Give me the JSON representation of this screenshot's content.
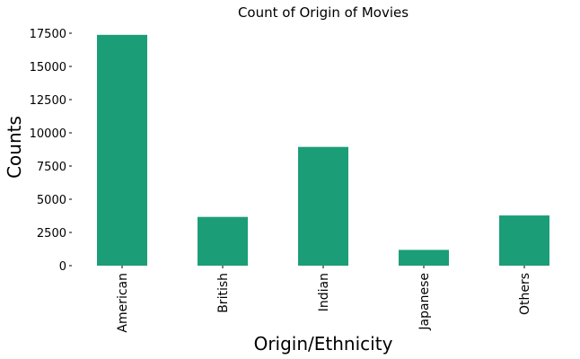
{
  "chart_data": {
    "type": "bar",
    "title": "Count of Origin of Movies",
    "xlabel": "Origin/Ethnicity",
    "ylabel": "Counts",
    "categories": [
      "American",
      "British",
      "Indian",
      "Japanese",
      "Others"
    ],
    "values": [
      17377,
      3670,
      8940,
      1188,
      3780
    ],
    "ylim": [
      0,
      17500
    ],
    "yticks": [
      0,
      2500,
      5000,
      7500,
      10000,
      12500,
      15000,
      17500
    ],
    "ytick_labels": [
      "0",
      "2500",
      "5000",
      "7500",
      "10000",
      "12500",
      "15000",
      "17500"
    ],
    "bar_color": "#1b9e77",
    "grid": false,
    "legend": "none"
  }
}
